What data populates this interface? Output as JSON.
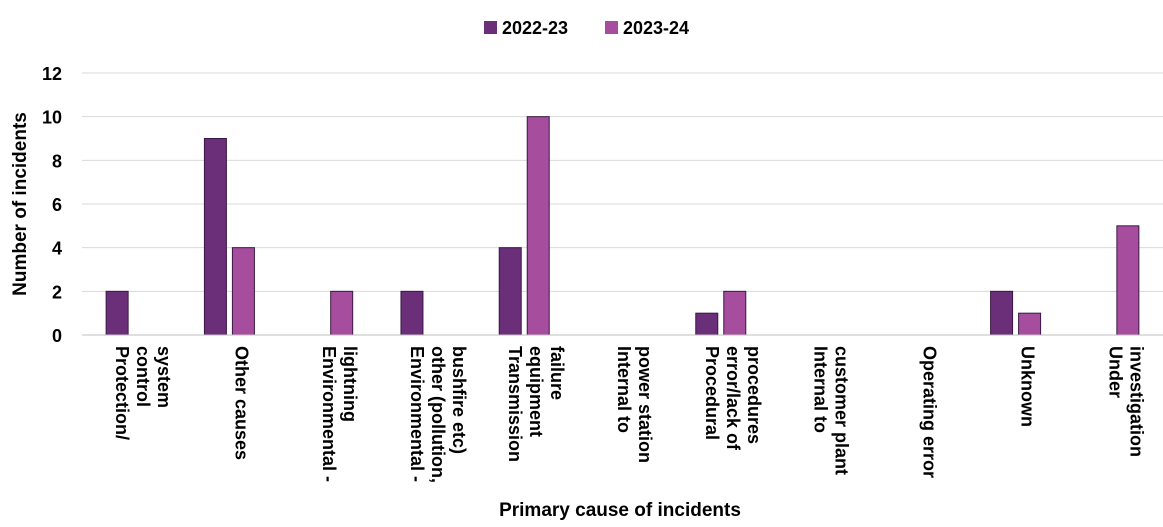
{
  "chart_data": {
    "type": "bar",
    "title": "",
    "xlabel": "Primary cause of incidents",
    "ylabel": "Number of incidents",
    "ylim": [
      0,
      12
    ],
    "yticks": [
      0,
      2,
      4,
      6,
      8,
      10,
      12
    ],
    "grid": true,
    "legend_position": "top-center",
    "categories": [
      [
        "Protection/",
        "control",
        "system"
      ],
      [
        "Other causes"
      ],
      [
        "Environmental -",
        "lightning"
      ],
      [
        "Environmental -",
        "other (pollution,",
        "bushfire etc)"
      ],
      [
        "Transmission",
        "equipment",
        "failure"
      ],
      [
        "Internal to",
        "power station"
      ],
      [
        "Procedural",
        "error/lack of",
        "procedures"
      ],
      [
        "Internal to",
        "customer plant"
      ],
      [
        "Operating error"
      ],
      [
        "Unknown"
      ],
      [
        "Under",
        "investigation"
      ]
    ],
    "series": [
      {
        "name": "2022-23",
        "color": "#6b2f7a",
        "values": [
          2,
          9,
          0,
          2,
          4,
          0,
          1,
          0,
          0,
          2,
          0
        ]
      },
      {
        "name": "2023-24",
        "color": "#a64d9e",
        "values": [
          0,
          4,
          2,
          0,
          10,
          0,
          2,
          0,
          0,
          1,
          5
        ]
      }
    ]
  }
}
